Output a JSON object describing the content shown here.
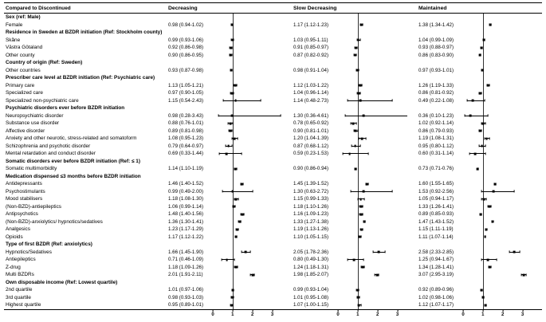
{
  "chart_data": {
    "type": "forest",
    "title": "Compared to Discontinued",
    "group_columns": [
      "Decreasing",
      "Slow Decreasing",
      "Maintained"
    ],
    "xlim": [
      0,
      3.5
    ],
    "ticks": [
      0,
      1,
      2,
      3
    ],
    "ref_line": 1,
    "value_format": "est (lo-hi)",
    "rows": [
      {
        "label": "Sex (ref: Male)",
        "section": true
      },
      {
        "label": "Female",
        "cells": [
          [
            0.98,
            0.94,
            1.02
          ],
          [
            1.17,
            1.12,
            1.23
          ],
          [
            1.38,
            1.34,
            1.42
          ]
        ]
      },
      {
        "label": "Residence in Sweden at BZDR initiation (Ref: Stockholm county)",
        "section": true
      },
      {
        "label": "Skåne",
        "cells": [
          [
            0.99,
            0.93,
            1.06
          ],
          [
            1.03,
            0.95,
            1.11
          ],
          [
            1.04,
            0.99,
            1.09
          ]
        ]
      },
      {
        "label": "Västra Götaland",
        "cells": [
          [
            0.92,
            0.86,
            0.98
          ],
          [
            0.91,
            0.85,
            0.97
          ],
          [
            0.93,
            0.88,
            0.97
          ]
        ]
      },
      {
        "label": "Other county",
        "cells": [
          [
            0.9,
            0.86,
            0.95
          ],
          [
            0.87,
            0.82,
            0.92
          ],
          [
            0.86,
            0.83,
            0.9
          ]
        ]
      },
      {
        "label": "Country of origin (Ref: Sweden)",
        "section": true
      },
      {
        "label": "Other countries",
        "cells": [
          [
            0.93,
            0.87,
            0.98
          ],
          [
            0.98,
            0.91,
            1.04
          ],
          [
            0.97,
            0.93,
            1.01
          ]
        ]
      },
      {
        "label": "Prescriber care level at BZDR initiation (Ref: Psychiatric care)",
        "section": true
      },
      {
        "label": "Primary care",
        "cells": [
          [
            1.13,
            1.05,
            1.21
          ],
          [
            1.12,
            1.03,
            1.22
          ],
          [
            1.26,
            1.19,
            1.33
          ]
        ]
      },
      {
        "label": "Specialized care",
        "cells": [
          [
            0.97,
            0.9,
            1.05
          ],
          [
            1.04,
            0.96,
            1.14
          ],
          [
            0.86,
            0.81,
            0.92
          ]
        ]
      },
      {
        "label": "Specialized non-psychiatric care",
        "cells": [
          [
            1.15,
            0.54,
            2.43
          ],
          [
            1.14,
            0.48,
            2.73
          ],
          [
            0.49,
            0.22,
            1.08
          ]
        ]
      },
      {
        "label": "Psychiatric disorders ever before BZDR initiation",
        "section": true
      },
      {
        "label": "Neuropsychiatric disorder",
        "cells": [
          [
            0.98,
            0.28,
            3.43
          ],
          [
            1.3,
            0.36,
            4.61
          ],
          [
            0.36,
            0.1,
            1.23
          ]
        ]
      },
      {
        "label": "Substance use disorder",
        "cells": [
          [
            0.88,
            0.76,
            1.01
          ],
          [
            0.78,
            0.65,
            0.92
          ],
          [
            1.02,
            0.92,
            1.14
          ]
        ]
      },
      {
        "label": "Affective disorder",
        "cells": [
          [
            0.89,
            0.81,
            0.98
          ],
          [
            0.9,
            0.81,
            1.01
          ],
          [
            0.86,
            0.79,
            0.93
          ]
        ]
      },
      {
        "label": "Anxiety and other neurotic, stress-related and somatoform",
        "cells": [
          [
            1.08,
            0.95,
            1.23
          ],
          [
            1.2,
            1.04,
            1.39
          ],
          [
            1.19,
            1.08,
            1.31
          ]
        ]
      },
      {
        "label": "Schizophrenia and psychotic disorder",
        "cells": [
          [
            0.79,
            0.64,
            0.97
          ],
          [
            0.87,
            0.68,
            1.12
          ],
          [
            0.95,
            0.8,
            1.12
          ]
        ]
      },
      {
        "label": "Mental retardation and conduct disorder",
        "cells": [
          [
            0.69,
            0.33,
            1.44
          ],
          [
            0.59,
            0.23,
            1.53
          ],
          [
            0.6,
            0.31,
            1.14
          ]
        ]
      },
      {
        "label": "Somatic disorders ever before BZDR initiation (Ref: ≤ 1)",
        "section": true
      },
      {
        "label": "Somatic multimorbidity",
        "cells": [
          [
            1.14,
            1.1,
            1.19
          ],
          [
            0.9,
            0.86,
            0.94
          ],
          [
            0.73,
            0.71,
            0.76
          ]
        ]
      },
      {
        "label": "Medication dispensed ≤3 months before BZDR initiation",
        "section": true
      },
      {
        "label": "Antidepressants",
        "cells": [
          [
            1.46,
            1.4,
            1.52
          ],
          [
            1.45,
            1.39,
            1.52
          ],
          [
            1.6,
            1.55,
            1.65
          ]
        ]
      },
      {
        "label": "Psychostimulants",
        "cells": [
          [
            0.99,
            0.49,
            2.0
          ],
          [
            1.3,
            0.63,
            2.72
          ],
          [
            1.53,
            0.92,
            2.56
          ]
        ]
      },
      {
        "label": "Mood stabilisers",
        "cells": [
          [
            1.18,
            1.08,
            1.3
          ],
          [
            1.15,
            0.99,
            1.33
          ],
          [
            1.05,
            0.94,
            1.17
          ]
        ]
      },
      {
        "label": "(Non-BZD)-antiepileptics",
        "cells": [
          [
            1.06,
            0.99,
            1.14
          ],
          [
            1.18,
            1.1,
            1.26
          ],
          [
            1.33,
            1.26,
            1.41
          ]
        ]
      },
      {
        "label": "Antipsychotics",
        "cells": [
          [
            1.48,
            1.4,
            1.56
          ],
          [
            1.16,
            1.09,
            1.23
          ],
          [
            0.89,
            0.85,
            0.93
          ]
        ]
      },
      {
        "label": "(Non-BZD)-anxiolytics/ hypnotics/sedatives",
        "cells": [
          [
            1.36,
            1.3,
            1.41
          ],
          [
            1.33,
            1.27,
            1.38
          ],
          [
            1.47,
            1.43,
            1.52
          ]
        ]
      },
      {
        "label": "Analgesics",
        "cells": [
          [
            1.23,
            1.17,
            1.29
          ],
          [
            1.19,
            1.13,
            1.26
          ],
          [
            1.15,
            1.11,
            1.19
          ]
        ]
      },
      {
        "label": "Opioids",
        "cells": [
          [
            1.17,
            1.12,
            1.22
          ],
          [
            1.1,
            1.05,
            1.15
          ],
          [
            1.11,
            1.07,
            1.14
          ]
        ]
      },
      {
        "label": "Type of first BZDR (Ref: anxiolytics)",
        "section": true
      },
      {
        "label": "Hypnotics/Sedatives",
        "cells": [
          [
            1.66,
            1.45,
            1.9
          ],
          [
            2.05,
            1.78,
            2.36
          ],
          [
            2.58,
            2.33,
            2.85
          ]
        ]
      },
      {
        "label": "Antiepileptics",
        "cells": [
          [
            0.71,
            0.46,
            1.09
          ],
          [
            0.8,
            0.49,
            1.3
          ],
          [
            1.25,
            0.94,
            1.67
          ]
        ]
      },
      {
        "label": "Z-drug",
        "cells": [
          [
            1.18,
            1.09,
            1.26
          ],
          [
            1.24,
            1.18,
            1.31
          ],
          [
            1.34,
            1.28,
            1.41
          ]
        ]
      },
      {
        "label": "Multi BZDRs",
        "cells": [
          [
            2.01,
            1.91,
            2.11
          ],
          [
            1.98,
            1.85,
            2.07
          ],
          [
            3.07,
            2.95,
            3.19
          ]
        ]
      },
      {
        "label": "Own disposable income (Ref: Lowest quartile)",
        "section": true
      },
      {
        "label": "2nd quartile",
        "cells": [
          [
            1.01,
            0.97,
            1.06
          ],
          [
            0.99,
            0.93,
            1.04
          ],
          [
            0.92,
            0.89,
            0.96
          ]
        ]
      },
      {
        "label": "3rd quartile",
        "cells": [
          [
            0.98,
            0.93,
            1.03
          ],
          [
            1.01,
            0.95,
            1.08
          ],
          [
            1.02,
            0.98,
            1.06
          ]
        ]
      },
      {
        "label": "Highest quartile",
        "cells": [
          [
            0.95,
            0.89,
            1.01
          ],
          [
            1.07,
            1.0,
            1.15
          ],
          [
            1.12,
            1.07,
            1.17
          ]
        ]
      }
    ]
  }
}
